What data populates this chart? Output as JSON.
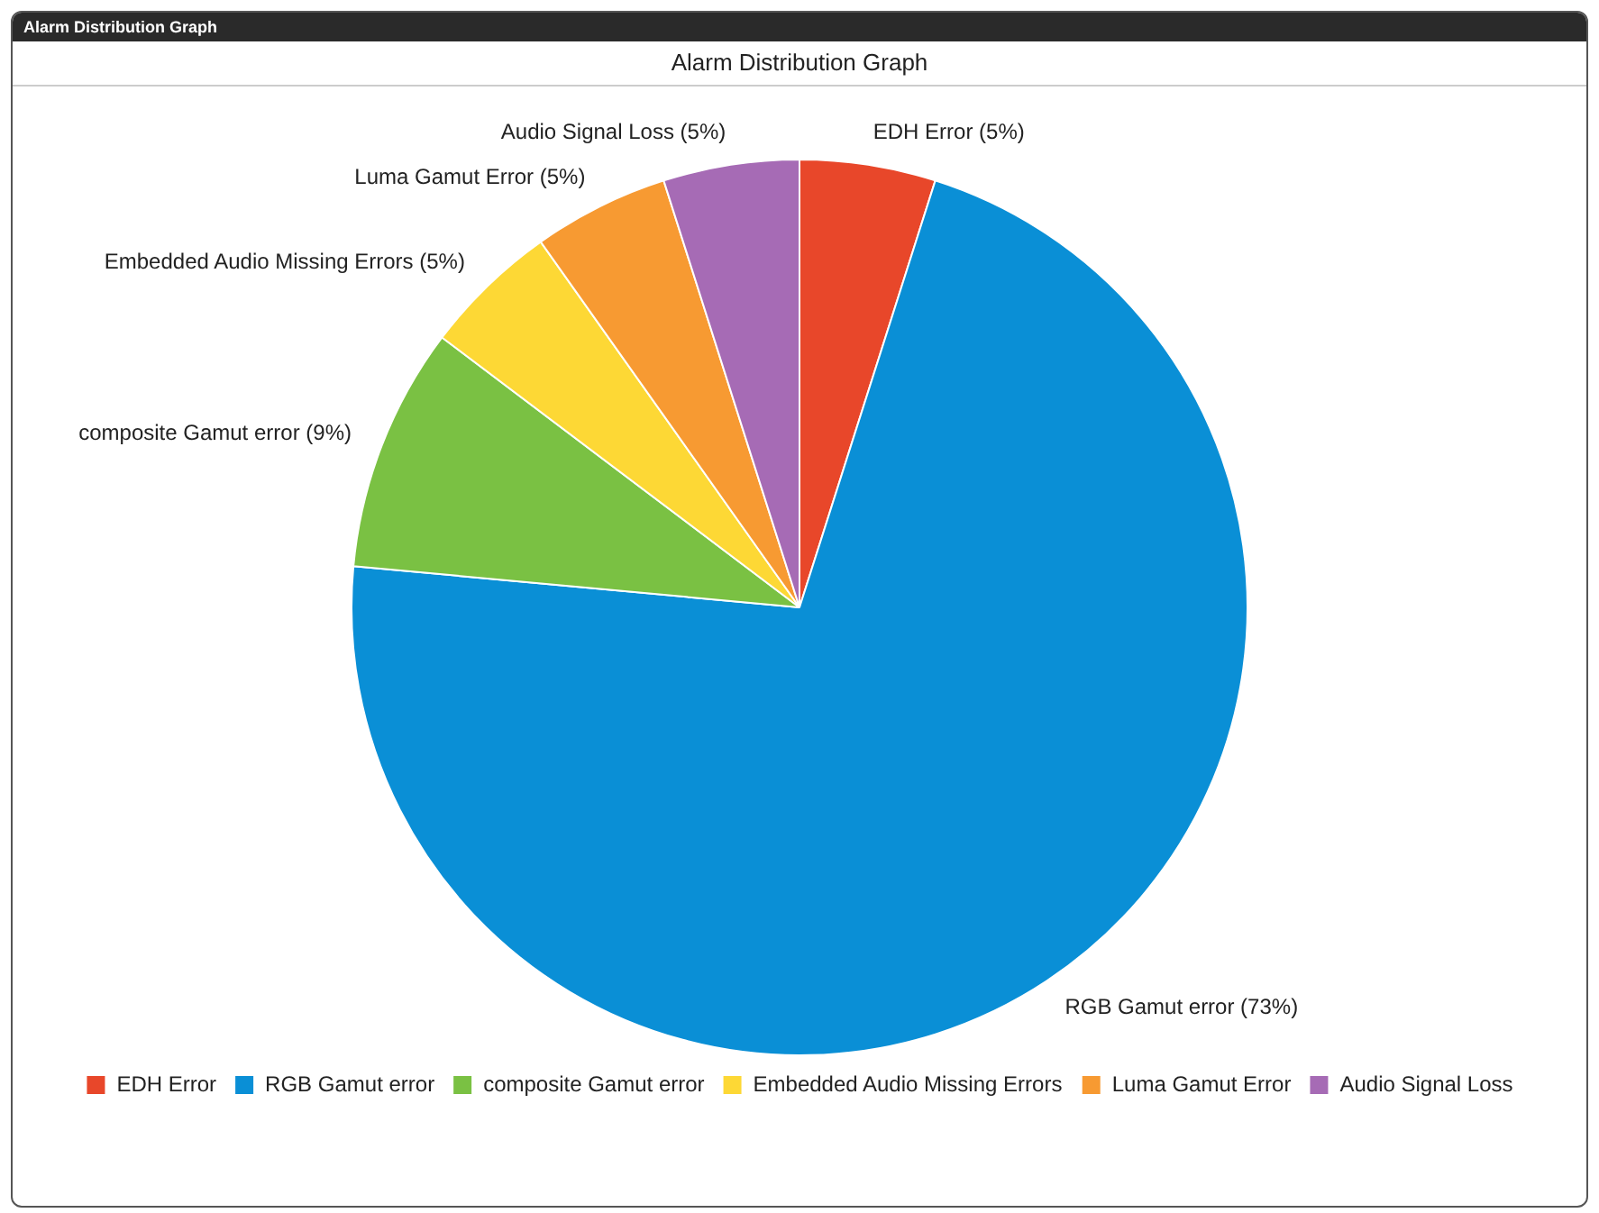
{
  "chart_data": {
    "type": "pie",
    "title": "Alarm Distribution Graph",
    "annotations": [
      "Alarm Distribution Graph"
    ],
    "categories": [
      "EDH Error",
      "RGB Gamut error",
      "composite Gamut error",
      "Embedded Audio Missing Errors",
      "Luma Gamut Error",
      "Audio Signal Loss"
    ],
    "values": [
      5,
      73,
      9,
      5,
      5,
      5
    ],
    "colors": [
      "#e8472a",
      "#0a8fd6",
      "#7ac143",
      "#fdd835",
      "#f79a32",
      "#a66bb5"
    ],
    "value_labels": [
      "EDH Error (5%)",
      "RGB Gamut error (73%)",
      "composite Gamut error (9%)",
      "Embedded Audio Missing Errors (5%)",
      "Luma Gamut Error (5%)",
      "Audio Signal Loss (5%)"
    ],
    "legend": "bottom"
  }
}
